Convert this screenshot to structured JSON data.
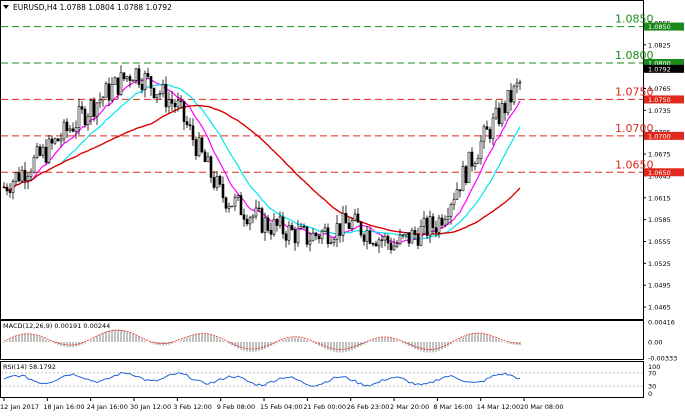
{
  "header": {
    "menu_icon": "triangle-down-icon",
    "text": "EURUSD,H4  1.0788 1.0804 1.0788 1.0792"
  },
  "levels": [
    {
      "value": 1.085,
      "label": "1.0850",
      "color": "#1a8a1a"
    },
    {
      "value": 1.08,
      "label": "1.0800",
      "color": "#1a8a1a"
    },
    {
      "value": 1.075,
      "label": "1.0750",
      "color": "#e0281c"
    },
    {
      "value": 1.07,
      "label": "1.0700",
      "color": "#e0281c"
    },
    {
      "value": 1.065,
      "label": "1.0650",
      "color": "#e0281c"
    }
  ],
  "price_axis_labels": [
    "1.0855",
    "1.0825",
    "1.0795",
    "1.0765",
    "1.0735",
    "1.0705",
    "1.0675",
    "1.0645",
    "1.0615",
    "1.0585",
    "1.0555",
    "1.0525",
    "1.0495",
    "1.0465"
  ],
  "price_tags": [
    {
      "value": 1.085,
      "text": "1.0850",
      "bg": "#1a8a1a",
      "fg": "#ffffff"
    },
    {
      "value": 1.08,
      "text": "1.0800",
      "bg": "#1a8a1a",
      "fg": "#ffffff"
    },
    {
      "value": 1.0792,
      "text": "1.0792",
      "bg": "#000000",
      "fg": "#ffffff"
    },
    {
      "value": 1.075,
      "text": "1.0750",
      "bg": "#e0281c",
      "fg": "#ffffff"
    },
    {
      "value": 1.07,
      "text": "1.0700",
      "bg": "#e0281c",
      "fg": "#ffffff"
    },
    {
      "value": 1.065,
      "text": "1.0650",
      "bg": "#e0281c",
      "fg": "#ffffff"
    }
  ],
  "date_labels": [
    "12 Jan 2017",
    "18 Jan 16:00",
    "24 Jan 16:00",
    "30 Jan 12:00",
    "3 Feb 12:00",
    "9 Feb 08:00",
    "15 Feb 04:00",
    "21 Feb 00:00",
    "26 Feb 23:00",
    "2 Mar 20:00",
    "8 Mar 16:00",
    "14 Mar 12:00",
    "20 Mar 08:00"
  ],
  "macd": {
    "label": "MACD(12,26,9) 0.00191 0.00244",
    "axis_labels": [
      "0.00416",
      "0.00",
      "-0.00333"
    ]
  },
  "rsi": {
    "label": "RSI(14) 58.1792",
    "axis_labels": [
      "100",
      "70",
      "30",
      "0"
    ]
  },
  "chart_data": {
    "type": "candlestick",
    "symbol": "EURUSD",
    "timeframe": "H4",
    "last_bar": {
      "open": 1.0788,
      "high": 1.0804,
      "low": 1.0788,
      "close": 1.0792
    },
    "y_range": [
      1.045,
      1.087
    ],
    "anchors": [
      {
        "date": "12 Jan 2017",
        "close": 1.063
      },
      {
        "date": "18 Jan 16:00",
        "close": 1.068
      },
      {
        "date": "24 Jan 16:00",
        "close": 1.074
      },
      {
        "date": "30 Jan 12:00",
        "close": 1.079
      },
      {
        "date": "3 Feb 12:00",
        "close": 1.074
      },
      {
        "date": "9 Feb 08:00",
        "close": 1.062
      },
      {
        "date": "15 Feb 04:00",
        "close": 1.058
      },
      {
        "date": "21 Feb 00:00",
        "close": 1.056
      },
      {
        "date": "26 Feb 23:00",
        "close": 1.058
      },
      {
        "date": "2 Mar 20:00",
        "close": 1.055
      },
      {
        "date": "8 Mar 16:00",
        "close": 1.058
      },
      {
        "date": "14 Mar 12:00",
        "close": 1.069
      },
      {
        "date": "20 Mar 08:00",
        "close": 1.078
      }
    ],
    "moving_averages": [
      {
        "color": "#ff00ff"
      },
      {
        "color": "#00e5ee"
      },
      {
        "color": "#dd0000"
      }
    ],
    "macd": {
      "macd": 0.00191,
      "signal": 0.00244,
      "range": [
        -0.00333,
        0.00416
      ]
    },
    "rsi": {
      "value": 58.1792,
      "levels": [
        30,
        70
      ],
      "range": [
        0,
        100
      ]
    }
  }
}
